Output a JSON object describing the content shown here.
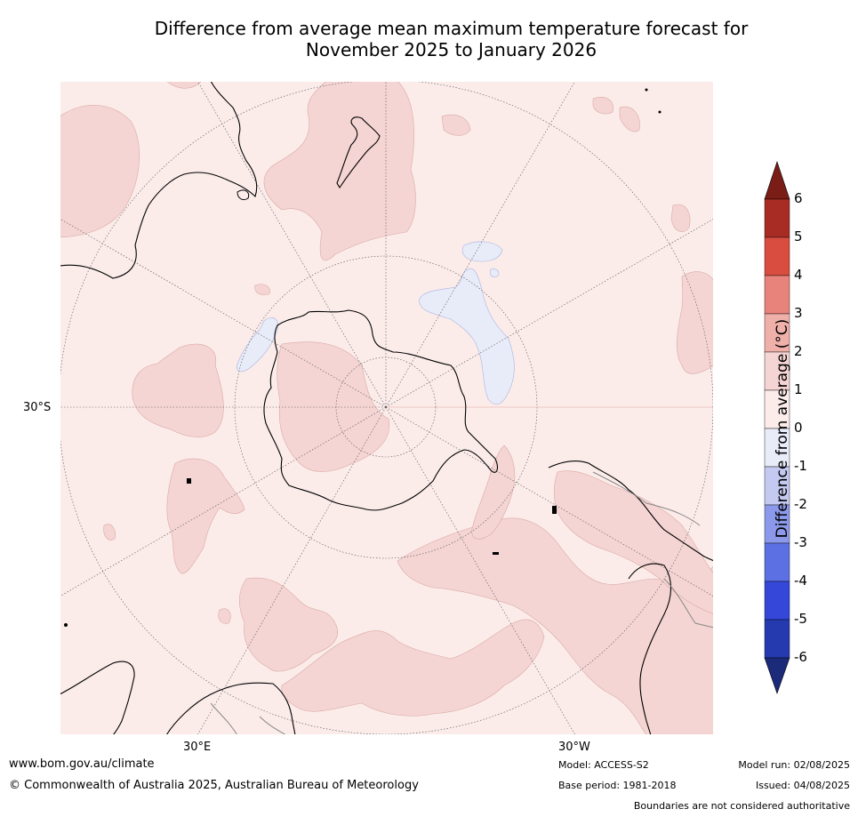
{
  "title": {
    "line1": "Difference from average mean maximum temperature forecast for",
    "line2": "November 2025 to January 2026"
  },
  "map": {
    "projection": "south-polar stereographic",
    "labels": {
      "lat_30s": "30°S",
      "lon_30e": "30°E",
      "lon_30w": "30°W"
    },
    "colors": {
      "ocean_background": "#fbecea",
      "anomaly_1_2": "#f4d5d3",
      "anomaly_0_minus1": "#e8ebf8",
      "coastline": "#000000",
      "borders": "#888888"
    }
  },
  "colorbar": {
    "label": "Difference from average (°C)",
    "ticks": [
      "6",
      "5",
      "4",
      "3",
      "2",
      "1",
      "0",
      "-1",
      "-2",
      "-3",
      "-4",
      "-5",
      "-6"
    ],
    "colors": [
      "#7b1d17",
      "#a82c24",
      "#d94c40",
      "#e7837a",
      "#f0b0aa",
      "#f4d5d3",
      "#fbecea",
      "#e8ebf8",
      "#c3c9f0",
      "#8c99ea",
      "#5c70e3",
      "#3447d9",
      "#243aae",
      "#1c2a7a"
    ]
  },
  "footer": {
    "website": "www.bom.gov.au/climate",
    "copyright": "© Commonwealth of Australia 2025, Australian Bureau of Meteorology",
    "model": "Model: ACCESS-S2",
    "base_period": "Base period: 1981-2018",
    "model_run": "Model run: 02/08/2025",
    "issued": "Issued: 04/08/2025",
    "disclaimer": "Boundaries are not considered authoritative"
  }
}
